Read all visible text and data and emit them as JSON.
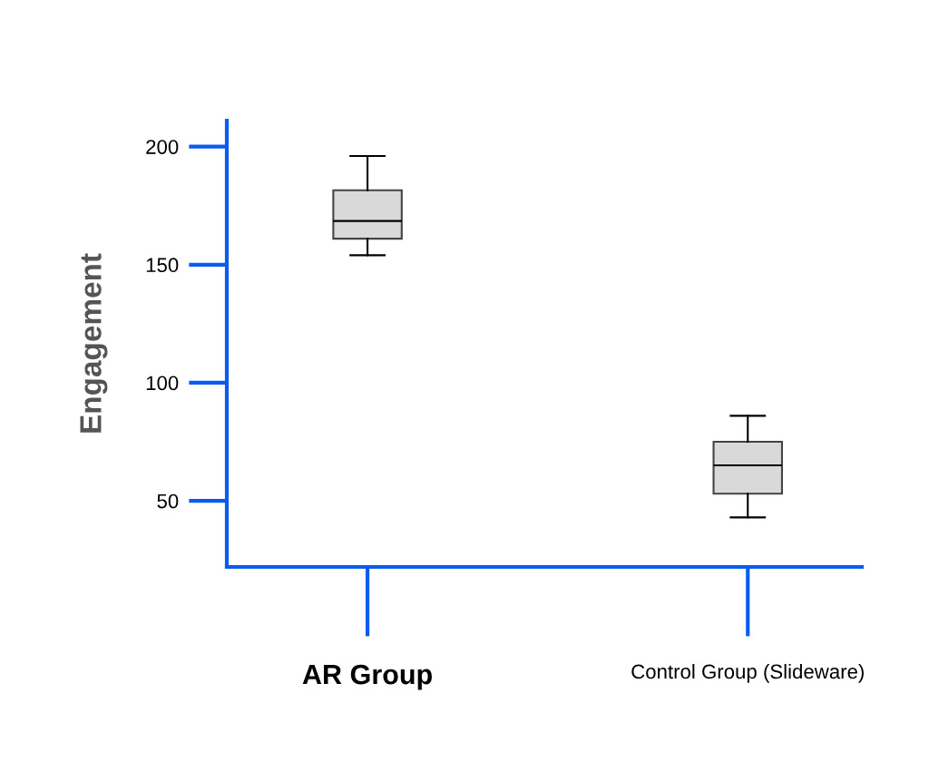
{
  "chart_data": {
    "type": "box",
    "ylabel": "Engagement",
    "categories": [
      "AR Group",
      "Control Group (Slideware)"
    ],
    "boxes": [
      {
        "low": 154,
        "q1": 161,
        "median": 168.5,
        "q3": 181.5,
        "high": 196
      },
      {
        "low": 43,
        "q1": 53,
        "median": 65,
        "q3": 75,
        "high": 86
      }
    ],
    "color": "#d9d9d9",
    "ylim": [
      22,
      211
    ],
    "yticks": [
      50,
      100,
      150,
      200
    ],
    "grid": false,
    "legend": false
  }
}
